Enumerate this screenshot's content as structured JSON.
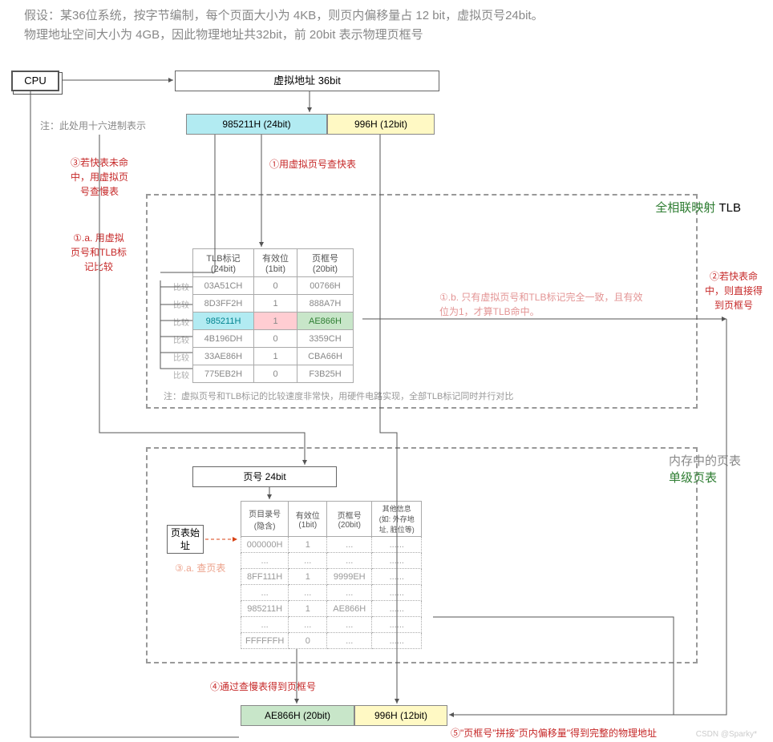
{
  "header": {
    "line1": "假设：某36位系统，按字节编制，每个页面大小为 4KB，则页内偏移量占 12 bit，虚拟页号24bit。",
    "line2": "物理地址空间大小为 4GB，因此物理地址共32bit，前 20bit 表示物理页框号"
  },
  "cpu": "CPU",
  "virtual_addr": "虚拟地址 36bit",
  "hex_note": "注：此处用十六进制表示",
  "va_split": {
    "vpn": {
      "text": "985211H (24bit)",
      "bg": "#b2ebf2"
    },
    "off": {
      "text": "996H (12bit)",
      "bg": "#fff9c4"
    }
  },
  "annot": {
    "a1": "①用虚拟页号查快表",
    "a1a": "①.a. 用虚拟页号和TLB标记比较",
    "a1b": "①.b. 只有虚拟页号和TLB标记完全一致，且有效位为1，才算TLB命中。",
    "a2": "②若快表命中，则直接得到页框号",
    "a3": "③若快表未命中，用虚拟页号查慢表",
    "a3a": "③.a. 查页表",
    "a4": "④通过查慢表得到页框号",
    "a5": "⑤\"页框号\"拼接\"页内偏移量\"得到完整的物理地址"
  },
  "tlb": {
    "title_green": "全相联映射",
    "title_black": " TLB",
    "headers": [
      "TLB标记 (24bit)",
      "有效位 (1bit)",
      "页框号 (20bit)"
    ],
    "rows": [
      {
        "tag": "03A51CH",
        "v": "0",
        "pfn": "00766H",
        "cmp": "比较"
      },
      {
        "tag": "8D3FF2H",
        "v": "1",
        "pfn": "888A7H",
        "cmp": "比较"
      },
      {
        "tag": "985211H",
        "v": "1",
        "pfn": "AE866H",
        "cmp": "比较",
        "hl": true,
        "tag_bg": "#b2ebf2",
        "v_bg": "#ffcdd2",
        "pfn_bg": "#c8e6c9"
      },
      {
        "tag": "4B196DH",
        "v": "0",
        "pfn": "3359CH",
        "cmp": "比较"
      },
      {
        "tag": "33AE86H",
        "v": "1",
        "pfn": "CBA66H",
        "cmp": "比较"
      },
      {
        "tag": "775EB2H",
        "v": "0",
        "pfn": "F3B25H",
        "cmp": "比较"
      }
    ],
    "note": "注：虚拟页号和TLB标记的比较速度非常快，用硬件电路实现，全部TLB标记同时并行对比"
  },
  "pagetable": {
    "title_grey": "内存中的页表",
    "title_green": "单级页表",
    "page_num": "页号 24bit",
    "base": "页表始址",
    "headers": [
      "页目录号 (隐含)",
      "有效位 (1bit)",
      "页框号 (20bit)",
      "其他信息 (如: 外存地址, 脏位等)"
    ],
    "rows": [
      {
        "idx": "000000H",
        "v": "1",
        "pfn": "...",
        "oth": "......"
      },
      {
        "idx": "...",
        "v": "...",
        "pfn": "...",
        "oth": "......"
      },
      {
        "idx": "8FF111H",
        "v": "1",
        "pfn": "9999EH",
        "oth": "......"
      },
      {
        "idx": "...",
        "v": "...",
        "pfn": "...",
        "oth": "......"
      },
      {
        "idx": "985211H",
        "v": "1",
        "pfn": "AE866H",
        "oth": "......"
      },
      {
        "idx": "...",
        "v": "...",
        "pfn": "...",
        "oth": "......"
      },
      {
        "idx": "FFFFFFH",
        "v": "0",
        "pfn": "...",
        "oth": "......"
      }
    ]
  },
  "pa_split": {
    "pfn": {
      "text": "AE866H (20bit)",
      "bg": "#c8e6c9"
    },
    "off": {
      "text": "996H (12bit)",
      "bg": "#fff9c4"
    }
  },
  "footer": "CSDN @Sparky*",
  "colors": {
    "cyan": "#b2ebf2",
    "yellow": "#fff9c4",
    "green": "#c8e6c9",
    "pink": "#ffcdd2",
    "red": "#c62828",
    "orange": "#d84315"
  }
}
